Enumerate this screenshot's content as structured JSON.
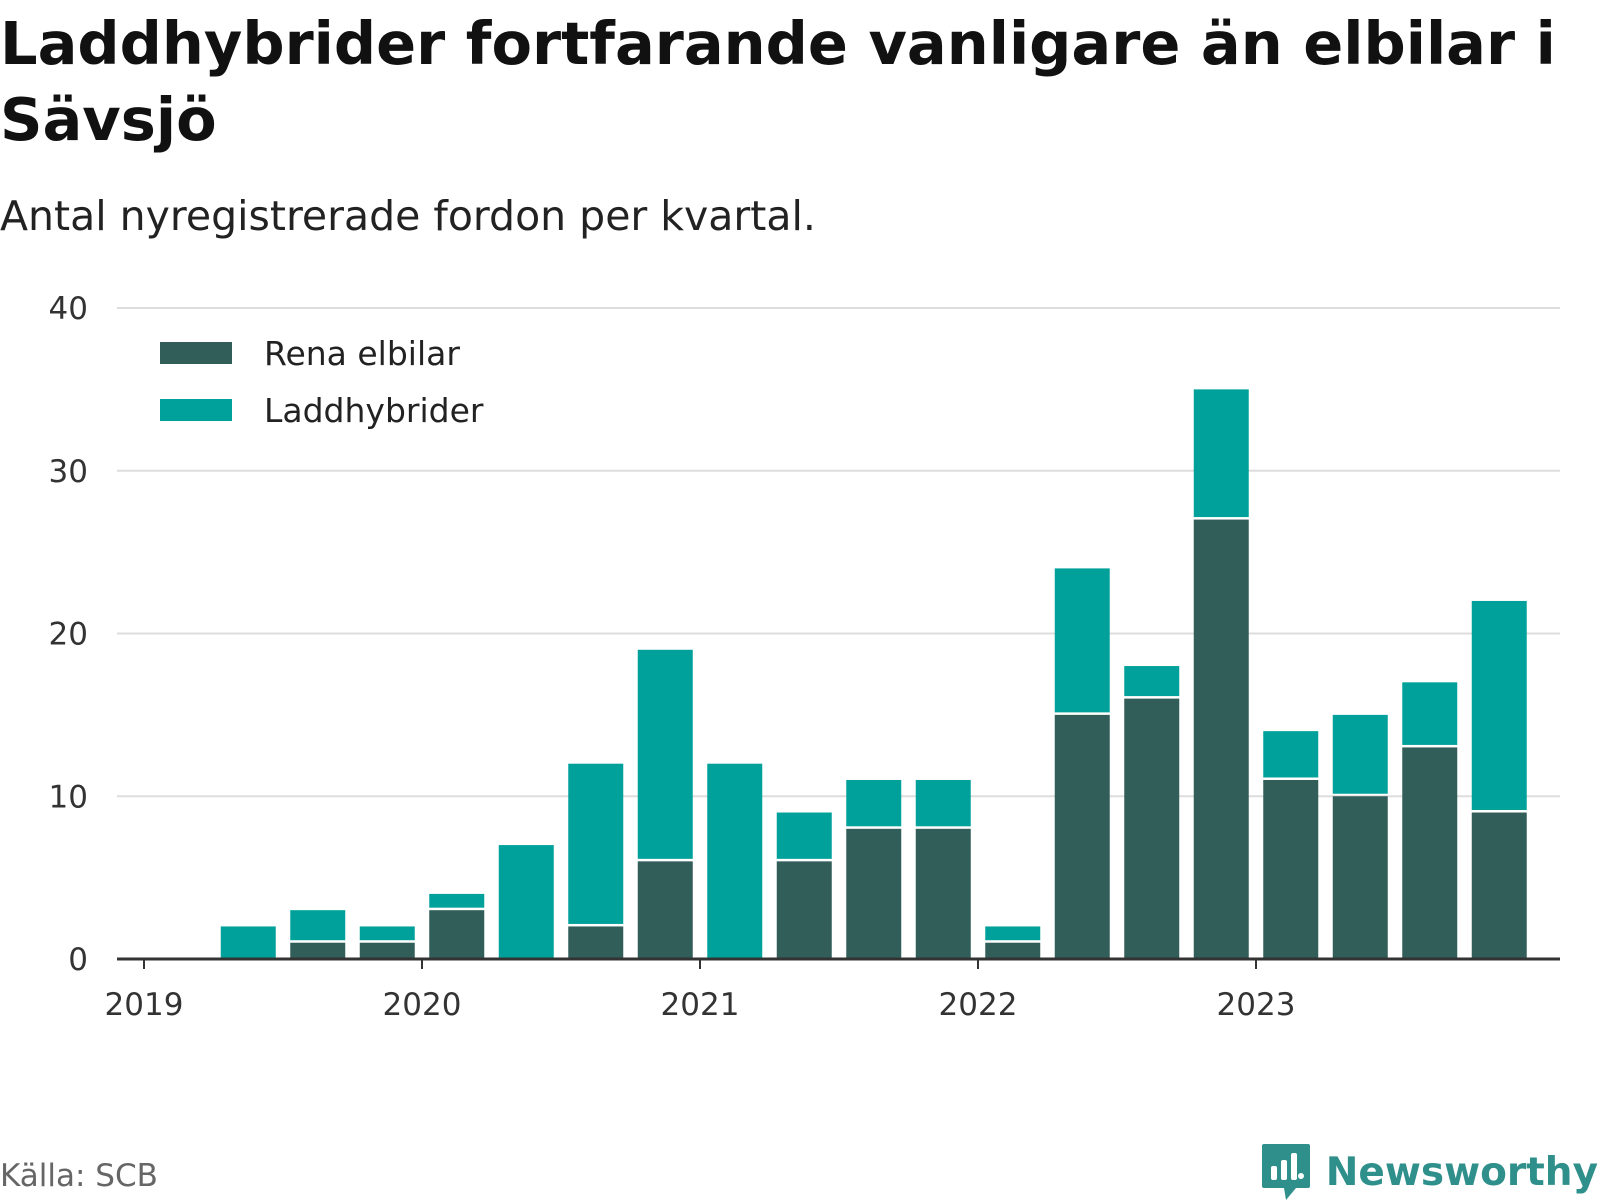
{
  "title": "Laddhybrider fortfarande vanligare än elbilar i Sävsjö",
  "subtitle": "Antal nyregistrerade fordon per kvartal.",
  "source": "Källa: SCB",
  "brand": "Newsworthy",
  "colors": {
    "rena_elbilar": "#325e5a",
    "laddhybrider": "#00a19a",
    "grid": "#dddddd",
    "axis": "#333333",
    "brand": "#2f8f8b"
  },
  "chart_data": {
    "type": "bar",
    "stacked": true,
    "title": "Laddhybrider fortfarande vanligare än elbilar i Sävsjö",
    "subtitle": "Antal nyregistrerade fordon per kvartal.",
    "xlabel": "",
    "ylabel": "",
    "ylim": [
      0,
      40
    ],
    "yticks": [
      0,
      10,
      20,
      30,
      40
    ],
    "xticks": [
      "2019",
      "2020",
      "2021",
      "2022",
      "2023"
    ],
    "categories": [
      "2019 Q2",
      "2019 Q3",
      "2019 Q4",
      "2020 Q1",
      "2020 Q2",
      "2020 Q3",
      "2020 Q4",
      "2021 Q1",
      "2021 Q2",
      "2021 Q3",
      "2021 Q4",
      "2022 Q1",
      "2022 Q2",
      "2022 Q3",
      "2022 Q4",
      "2023 Q1",
      "2023 Q2",
      "2023 Q3",
      "2023 Q4"
    ],
    "series": [
      {
        "name": "Rena elbilar",
        "values": [
          0,
          1,
          1,
          3,
          0,
          2,
          6,
          0,
          6,
          8,
          8,
          1,
          15,
          16,
          27,
          11,
          10,
          13,
          9
        ]
      },
      {
        "name": "Laddhybrider",
        "values": [
          2,
          2,
          1,
          1,
          7,
          10,
          13,
          12,
          3,
          3,
          3,
          1,
          9,
          2,
          8,
          3,
          5,
          4,
          13
        ]
      }
    ],
    "legend_position": "top-left",
    "grid": true
  }
}
